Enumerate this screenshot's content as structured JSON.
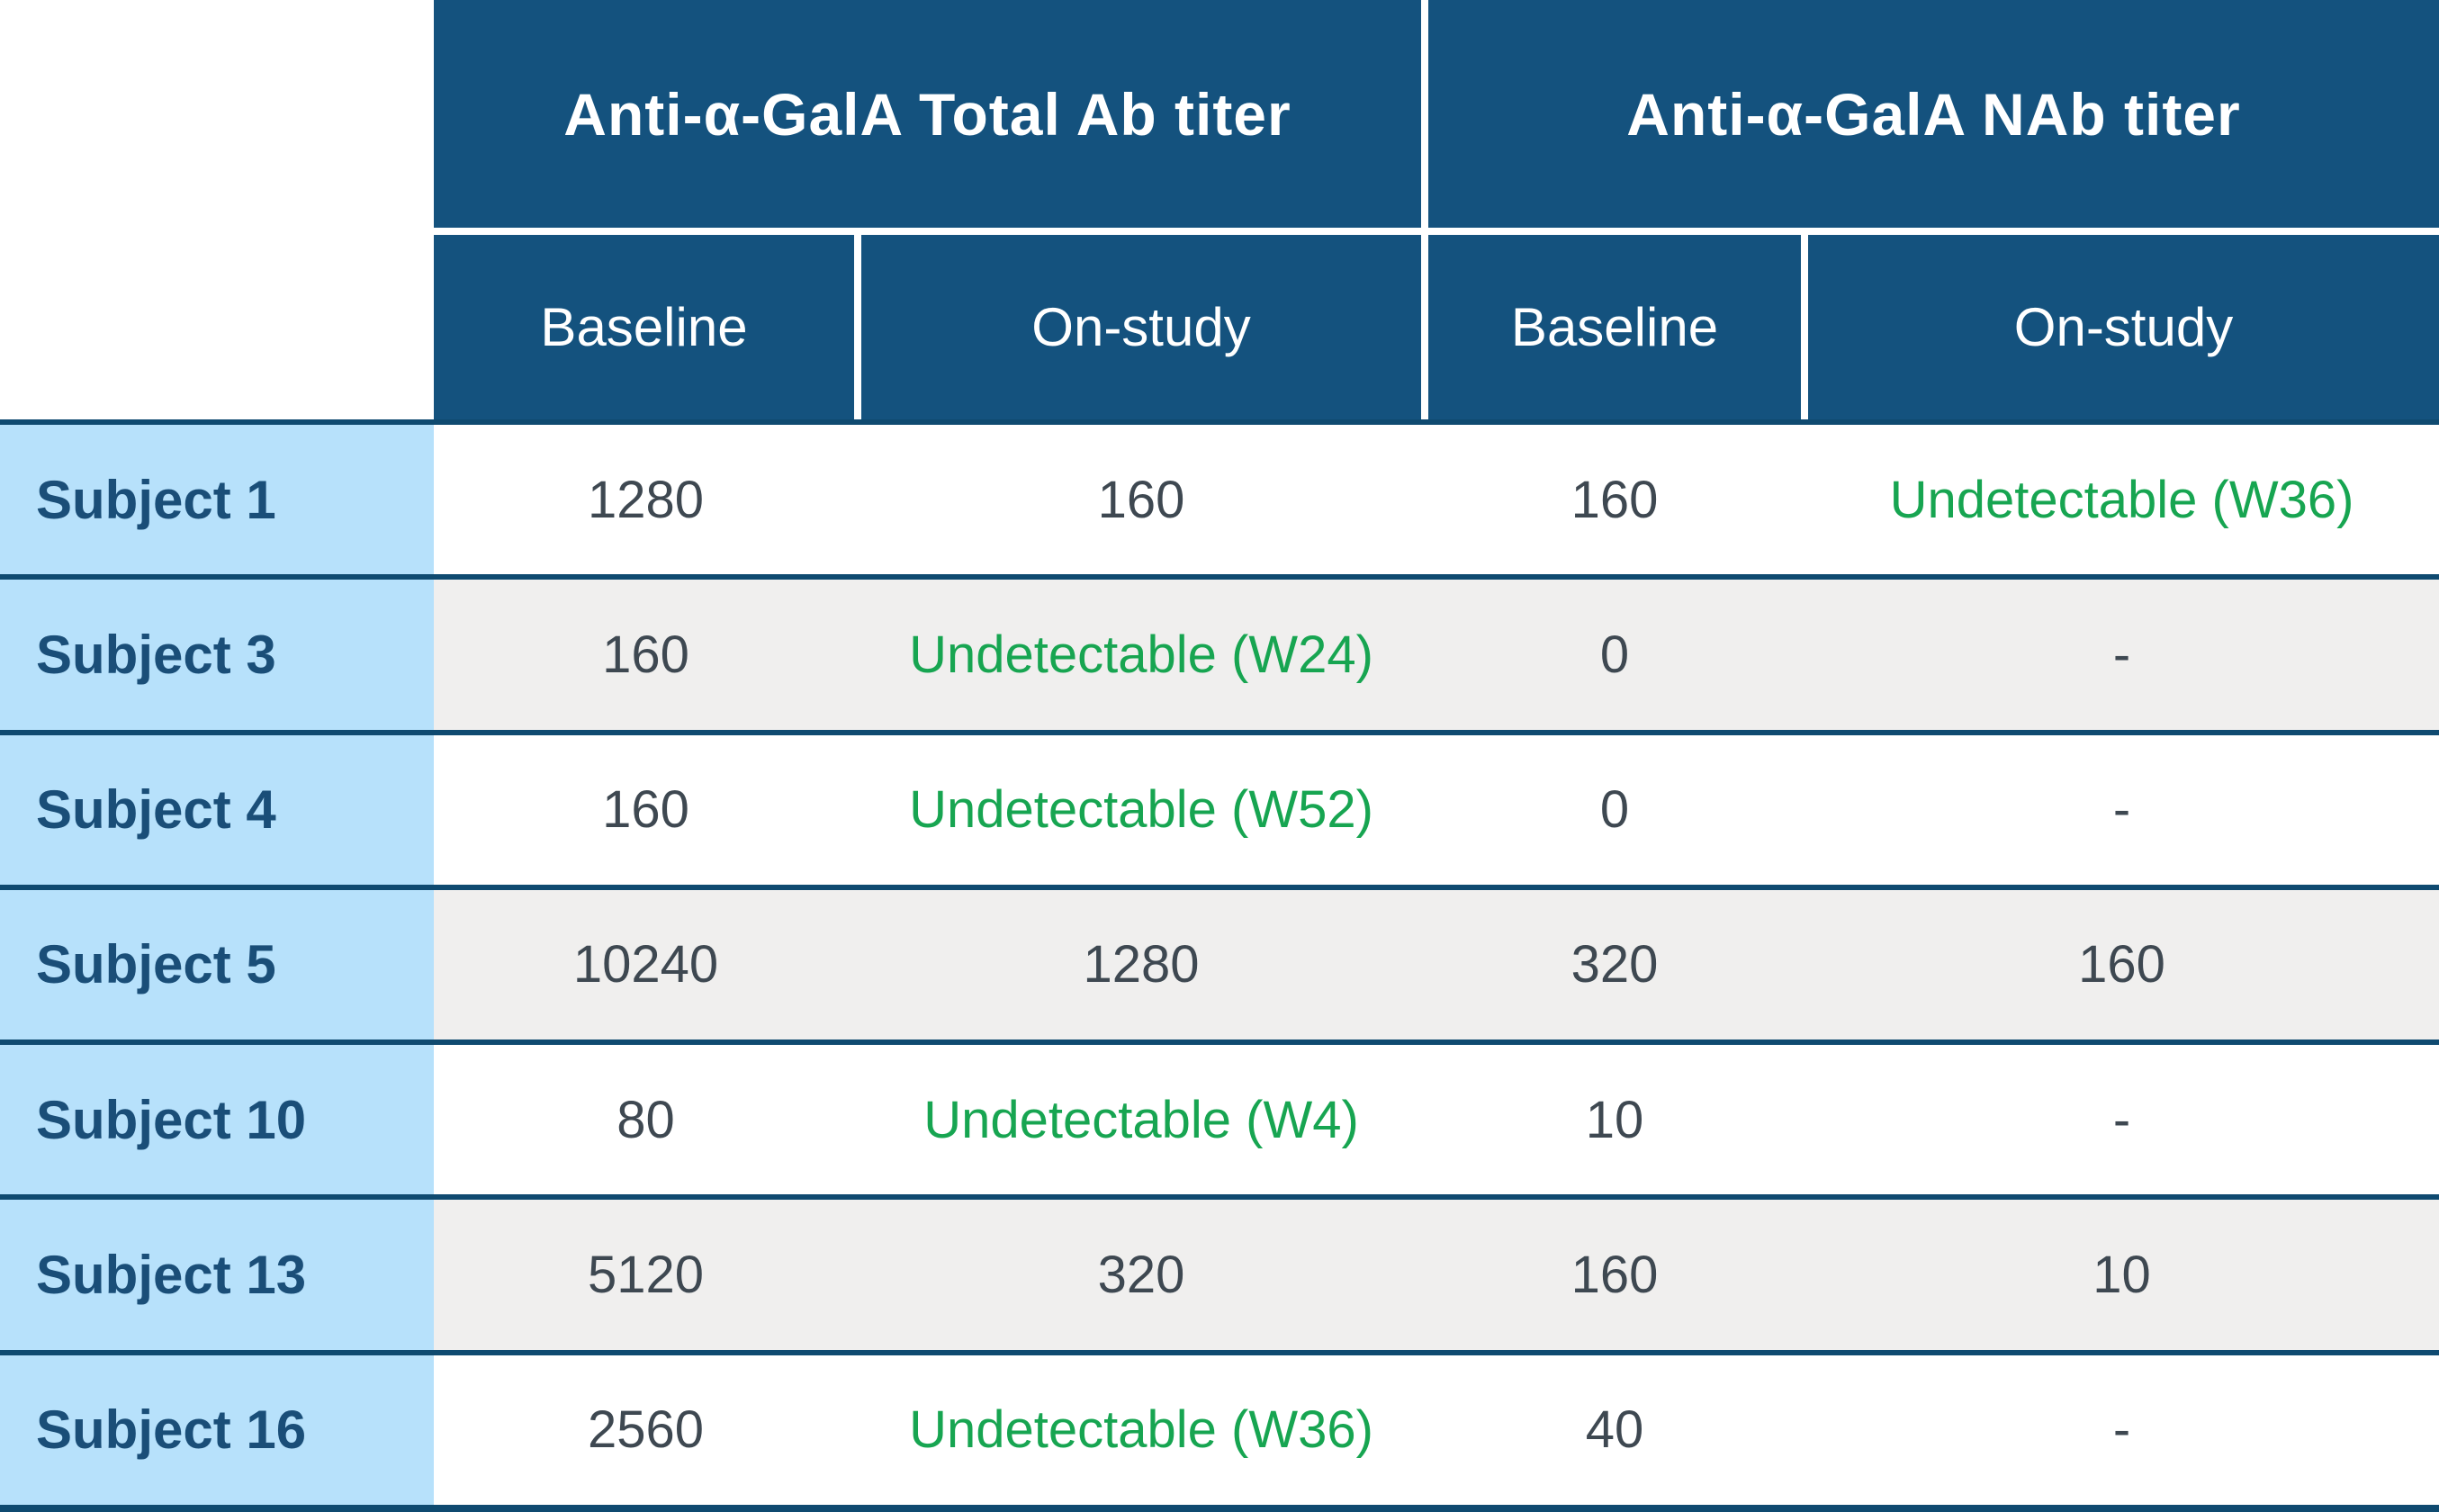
{
  "header": {
    "groups": [
      {
        "label": "Anti-α-GalA Total Ab titer"
      },
      {
        "label": "Anti-α-GalA NAb titer"
      }
    ],
    "sub_columns": [
      "Baseline",
      "On-study",
      "Baseline",
      "On-study"
    ]
  },
  "table": {
    "rows": [
      {
        "subject": "Subject 1",
        "cells": [
          {
            "text": "1280",
            "cls": "dark"
          },
          {
            "text": "160",
            "cls": "dark"
          },
          {
            "text": "160",
            "cls": "dark"
          },
          {
            "text": "Undetectable (W36)",
            "cls": "green"
          }
        ]
      },
      {
        "subject": "Subject 3",
        "cells": [
          {
            "text": "160",
            "cls": "dark"
          },
          {
            "text": "Undetectable (W24)",
            "cls": "green"
          },
          {
            "text": "0",
            "cls": "dark"
          },
          {
            "text": "-",
            "cls": "dark"
          }
        ]
      },
      {
        "subject": "Subject 4",
        "cells": [
          {
            "text": "160",
            "cls": "dark"
          },
          {
            "text": "Undetectable (W52)",
            "cls": "green"
          },
          {
            "text": "0",
            "cls": "dark"
          },
          {
            "text": "-",
            "cls": "dark"
          }
        ]
      },
      {
        "subject": "Subject 5",
        "cells": [
          {
            "text": "10240",
            "cls": "dark"
          },
          {
            "text": "1280",
            "cls": "dark"
          },
          {
            "text": "320",
            "cls": "dark"
          },
          {
            "text": "160",
            "cls": "dark"
          }
        ]
      },
      {
        "subject": "Subject 10",
        "cells": [
          {
            "text": "80",
            "cls": "dark"
          },
          {
            "text": "Undetectable (W4)",
            "cls": "green"
          },
          {
            "text": "10",
            "cls": "dark"
          },
          {
            "text": "-",
            "cls": "dark"
          }
        ]
      },
      {
        "subject": "Subject 13",
        "cells": [
          {
            "text": "5120",
            "cls": "dark"
          },
          {
            "text": "320",
            "cls": "dark"
          },
          {
            "text": "160",
            "cls": "dark"
          },
          {
            "text": "10",
            "cls": "dark"
          }
        ]
      },
      {
        "subject": "Subject 16",
        "cells": [
          {
            "text": "2560",
            "cls": "dark"
          },
          {
            "text": "Undetectable (W36)",
            "cls": "green"
          },
          {
            "text": "40",
            "cls": "dark"
          },
          {
            "text": "-",
            "cls": "dark"
          }
        ]
      }
    ]
  },
  "colors": {
    "header_navy": "#14527e",
    "separator_navy": "#0f4a70",
    "subject_column_blue": "#b7e1fb",
    "stripe_gray": "#f0efee",
    "value_text": "#3e4851",
    "undetectable_green": "#17a551",
    "subject_text_navy": "#1a4e78",
    "header_text": "#ffffff"
  }
}
